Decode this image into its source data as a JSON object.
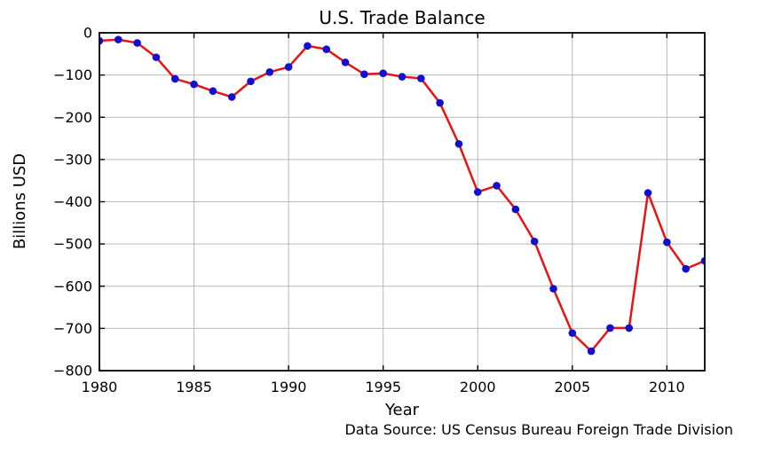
{
  "page": {
    "background": "#ffffff"
  },
  "chart_data": {
    "type": "line",
    "title": "U.S. Trade Balance",
    "xlabel": "Year",
    "ylabel": "Billions USD",
    "caption": "Data Source: US Census Bureau Foreign Trade Division",
    "x": [
      1980,
      1981,
      1982,
      1983,
      1984,
      1985,
      1986,
      1987,
      1988,
      1989,
      1990,
      1991,
      1992,
      1993,
      1994,
      1995,
      1996,
      1997,
      1998,
      1999,
      2000,
      2001,
      2002,
      2003,
      2004,
      2005,
      2006,
      2007,
      2008,
      2009,
      2010,
      2011,
      2012
    ],
    "values": [
      -19,
      -16,
      -24,
      -58,
      -109,
      -122,
      -138,
      -152,
      -115,
      -93,
      -81,
      -31,
      -39,
      -70,
      -98,
      -96,
      -104,
      -108,
      -166,
      -263,
      -377,
      -362,
      -418,
      -494,
      -606,
      -711,
      -754,
      -699,
      -699,
      -379,
      -496,
      -559,
      -540
    ],
    "xlim": [
      1980,
      2012
    ],
    "ylim": [
      -800,
      0
    ],
    "xticks": [
      1980,
      1985,
      1990,
      1995,
      2000,
      2005,
      2010
    ],
    "xtick_labels": [
      "1980",
      "1985",
      "1990",
      "1995",
      "2000",
      "2005",
      "2010"
    ],
    "yticks": [
      0,
      -100,
      -200,
      -300,
      -400,
      -500,
      -600,
      -700,
      -800
    ],
    "ytick_labels": [
      "0",
      "−100",
      "−200",
      "−300",
      "−400",
      "−500",
      "−600",
      "−700",
      "−800"
    ],
    "grid": true,
    "legend": "none",
    "line_color": "#e81414",
    "marker_color": "#1010d0",
    "grid_color": "#b8b8b8",
    "spine_color": "#000000",
    "marker": "circle"
  }
}
